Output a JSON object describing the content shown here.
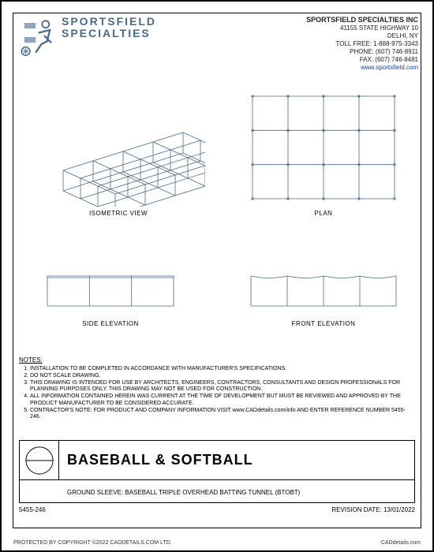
{
  "company": {
    "logo_word1": "SPORTSFIELD",
    "logo_word2": "SPECIALTIES",
    "name": "SPORTSFIELD SPECIALTIES INC",
    "addr1": "41155 STATE HIGHWAY 10",
    "addr2": "DELHI, NY",
    "tollfree": "TOLL FREE: 1-888-975-3343",
    "phone": "PHONE: (607) 746-8911",
    "fax": "FAX: (607) 746-8481",
    "url": "www.sportsfield.com"
  },
  "colors": {
    "logo": "#4a6a8a",
    "draw": "#4a6a8a",
    "black": "#000000"
  },
  "views": {
    "iso_label": "ISOMETRIC VIEW",
    "plan_label": "PLAN",
    "side_label": "SIDE ELEVATION",
    "front_label": "FRONT ELEVATION"
  },
  "plan": {
    "cols": 4,
    "rows": 3
  },
  "side": {
    "bays": 3
  },
  "front": {
    "bays": 4
  },
  "notes_title": "NOTES:",
  "notes": [
    "INSTALLATION TO BE COMPLETED IN ACCORDANCE WITH MANUFACTURER'S SPECIFICATIONS.",
    "DO NOT SCALE DRAWING.",
    "THIS DRAWING IS INTENDED FOR USE BY ARCHITECTS, ENGINEERS, CONTRACTORS, CONSULTANTS AND DESIGN PROFESSIONALS FOR PLANNING PURPOSES ONLY. THIS DRAWING MAY NOT BE USED FOR CONSTRUCTION.",
    "ALL INFORMATION CONTAINED HEREIN WAS CURRENT AT THE TIME OF DEVELOPMENT BUT MUST BE REVIEWED AND APPROVED BY THE PRODUCT MANUFACTURER TO BE CONSIDERED ACCURATE.",
    "CONTRACTOR'S NOTE: FOR PRODUCT AND COMPANY INFORMATION VISIT www.CADdetails.com/info AND ENTER REFERENCE NUMBER  5455-246."
  ],
  "title": "BASEBALL & SOFTBALL",
  "subtitle": "GROUND SLEEVE: BASEBALL TRIPLE OVERHEAD BATTING TUNNEL (BTOBT)",
  "ref": "5455-246",
  "revision": "REVISION DATE: 13/01/2022",
  "copyright": "PROTECTED BY COPYRIGHT ©2022 CADDETAILS.COM LTD.",
  "site": "CADdetails.com"
}
